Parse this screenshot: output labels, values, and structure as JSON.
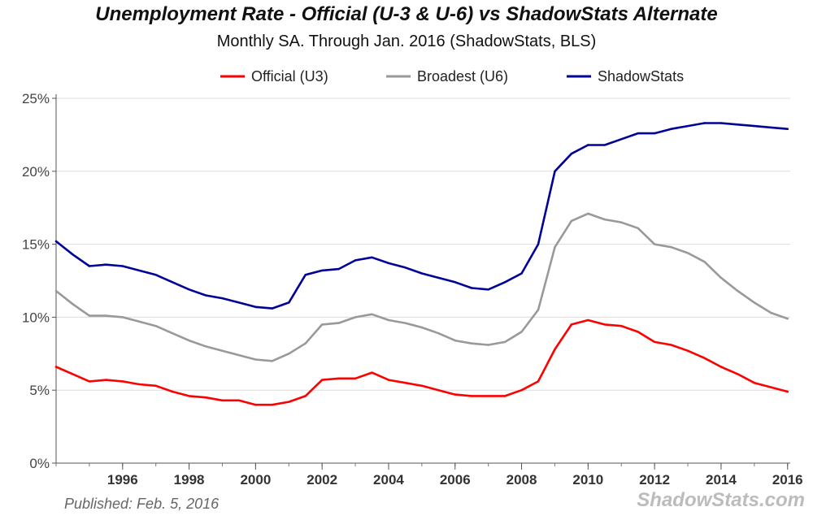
{
  "chart_data": {
    "type": "line",
    "title": "Unemployment Rate - Official (U-3 & U-6) vs ShadowStats Alternate",
    "subtitle": "Monthly SA. Through Jan. 2016  (ShadowStats, BLS)",
    "xlabel": "",
    "ylabel": "",
    "xlim": [
      1994.0,
      2016.08
    ],
    "ylim": [
      0,
      25
    ],
    "grid": true,
    "legend_position": "top-center",
    "x_ticks": [
      {
        "value": 1996,
        "label": "1996"
      },
      {
        "value": 1998,
        "label": "1998"
      },
      {
        "value": 2000,
        "label": "2000"
      },
      {
        "value": 2002,
        "label": "2002"
      },
      {
        "value": 2004,
        "label": "2004"
      },
      {
        "value": 2006,
        "label": "2006"
      },
      {
        "value": 2008,
        "label": "2008"
      },
      {
        "value": 2010,
        "label": "2010"
      },
      {
        "value": 2012,
        "label": "2012"
      },
      {
        "value": 2014,
        "label": "2014"
      },
      {
        "value": 2016,
        "label": "2016"
      }
    ],
    "y_ticks": [
      {
        "value": 0,
        "label": "0%"
      },
      {
        "value": 5,
        "label": "5%"
      },
      {
        "value": 10,
        "label": "10%"
      },
      {
        "value": 15,
        "label": "15%"
      },
      {
        "value": 20,
        "label": "20%"
      },
      {
        "value": 25,
        "label": "25%"
      }
    ],
    "series": [
      {
        "name": "Official (U3)",
        "color": "#ff0000",
        "x": [
          1994.0,
          1994.5,
          1995.0,
          1995.5,
          1996.0,
          1996.5,
          1997.0,
          1997.5,
          1998.0,
          1998.5,
          1999.0,
          1999.5,
          2000.0,
          2000.5,
          2001.0,
          2001.5,
          2002.0,
          2002.5,
          2003.0,
          2003.5,
          2004.0,
          2004.5,
          2005.0,
          2005.5,
          2006.0,
          2006.5,
          2007.0,
          2007.5,
          2008.0,
          2008.5,
          2009.0,
          2009.5,
          2010.0,
          2010.5,
          2011.0,
          2011.5,
          2012.0,
          2012.5,
          2013.0,
          2013.5,
          2014.0,
          2014.5,
          2015.0,
          2015.5,
          2016.0
        ],
        "values": [
          6.6,
          6.1,
          5.6,
          5.7,
          5.6,
          5.4,
          5.3,
          4.9,
          4.6,
          4.5,
          4.3,
          4.3,
          4.0,
          4.0,
          4.2,
          4.6,
          5.7,
          5.8,
          5.8,
          6.2,
          5.7,
          5.5,
          5.3,
          5.0,
          4.7,
          4.6,
          4.6,
          4.6,
          5.0,
          5.6,
          7.8,
          9.5,
          9.8,
          9.5,
          9.4,
          9.0,
          8.3,
          8.1,
          7.7,
          7.2,
          6.6,
          6.1,
          5.5,
          5.2,
          4.9
        ]
      },
      {
        "name": "Broadest (U6)",
        "color": "#999999",
        "x": [
          1994.0,
          1994.5,
          1995.0,
          1995.5,
          1996.0,
          1996.5,
          1997.0,
          1997.5,
          1998.0,
          1998.5,
          1999.0,
          1999.5,
          2000.0,
          2000.5,
          2001.0,
          2001.5,
          2002.0,
          2002.5,
          2003.0,
          2003.5,
          2004.0,
          2004.5,
          2005.0,
          2005.5,
          2006.0,
          2006.5,
          2007.0,
          2007.5,
          2008.0,
          2008.5,
          2009.0,
          2009.5,
          2010.0,
          2010.5,
          2011.0,
          2011.5,
          2012.0,
          2012.5,
          2013.0,
          2013.5,
          2014.0,
          2014.5,
          2015.0,
          2015.5,
          2016.0
        ],
        "values": [
          11.8,
          10.9,
          10.1,
          10.1,
          10.0,
          9.7,
          9.4,
          8.9,
          8.4,
          8.0,
          7.7,
          7.4,
          7.1,
          7.0,
          7.5,
          8.2,
          9.5,
          9.6,
          10.0,
          10.2,
          9.8,
          9.6,
          9.3,
          8.9,
          8.4,
          8.2,
          8.1,
          8.3,
          9.0,
          10.5,
          14.8,
          16.6,
          17.1,
          16.7,
          16.5,
          16.1,
          15.0,
          14.8,
          14.4,
          13.8,
          12.7,
          11.8,
          11.0,
          10.3,
          9.9
        ]
      },
      {
        "name": "ShadowStats",
        "color": "#000099",
        "x": [
          1994.0,
          1994.5,
          1995.0,
          1995.5,
          1996.0,
          1996.5,
          1997.0,
          1997.5,
          1998.0,
          1998.5,
          1999.0,
          1999.5,
          2000.0,
          2000.5,
          2001.0,
          2001.5,
          2002.0,
          2002.5,
          2003.0,
          2003.5,
          2004.0,
          2004.5,
          2005.0,
          2005.5,
          2006.0,
          2006.5,
          2007.0,
          2007.5,
          2008.0,
          2008.5,
          2009.0,
          2009.5,
          2010.0,
          2010.5,
          2011.0,
          2011.5,
          2012.0,
          2012.5,
          2013.0,
          2013.5,
          2014.0,
          2014.5,
          2015.0,
          2015.5,
          2016.0
        ],
        "values": [
          15.2,
          14.3,
          13.5,
          13.6,
          13.5,
          13.2,
          12.9,
          12.4,
          11.9,
          11.5,
          11.3,
          11.0,
          10.7,
          10.6,
          11.0,
          12.9,
          13.2,
          13.3,
          13.9,
          14.1,
          13.7,
          13.4,
          13.0,
          12.7,
          12.4,
          12.0,
          11.9,
          12.4,
          13.0,
          15.0,
          20.0,
          21.2,
          21.8,
          21.8,
          22.2,
          22.6,
          22.6,
          22.9,
          23.1,
          23.3,
          23.3,
          23.2,
          23.1,
          23.0,
          22.9
        ]
      }
    ]
  },
  "footer": {
    "published": "Published: Feb. 5, 2016",
    "watermark": "ShadowStats.com"
  }
}
